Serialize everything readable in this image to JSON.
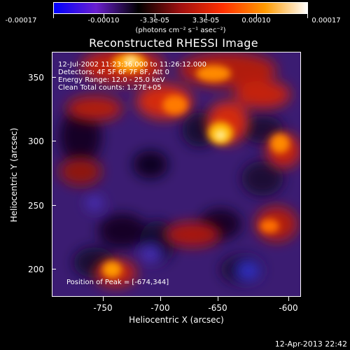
{
  "colorbar": {
    "ticks": [
      "-0.00017",
      "-0.00010",
      "-3.3e-05",
      "3.3e-05",
      "0.00010",
      "0.00017"
    ],
    "units": "(photons cm⁻² s⁻¹ asec⁻²)",
    "colors": [
      "#0000ff",
      "#6a1fcf",
      "#000000",
      "#a01010",
      "#ff3000",
      "#ff9a00",
      "#ffffff"
    ]
  },
  "plot": {
    "title": "Reconstructed RHESSI Image",
    "annotation": {
      "line1": "12-Jul-2002 11:23:36.000 to 11:26:12.000",
      "line2": "Detectors: 4F 5F 6F 7F 8F, Att 0",
      "line3": "Energy Range: 12.0 - 25.0 keV",
      "line4": "Clean    Total counts: 1.27E+05"
    },
    "peak_text": "Position of Peak = [-674,344]",
    "xaxis": {
      "title": "Heliocentric X (arcsec)",
      "ticks": [
        "-750",
        "-700",
        "-650",
        "-600"
      ]
    },
    "yaxis": {
      "title": "Heliocentric Y (arcsec)",
      "ticks": [
        "350",
        "300",
        "250",
        "200"
      ]
    }
  },
  "timestamp": "12-Apr-2013 22:42"
}
